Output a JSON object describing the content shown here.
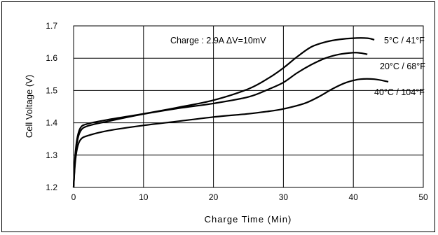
{
  "chart_data": {
    "type": "line",
    "xlabel": "Charge Time (Min)",
    "ylabel": "Cell Voltage (V)",
    "xlim": [
      0,
      50
    ],
    "ylim": [
      1.2,
      1.7
    ],
    "x_ticks": [
      "0",
      "10",
      "20",
      "30",
      "40",
      "50"
    ],
    "y_ticks": [
      "1.2",
      "1.3",
      "1.4",
      "1.5",
      "1.6",
      "1.7"
    ],
    "grid": true,
    "annotation": "Charge : 2.9A  ΔV=10mV",
    "series": [
      {
        "name": "5°C / 41°F",
        "points": [
          [
            0,
            1.2
          ],
          [
            0.2,
            1.29
          ],
          [
            0.5,
            1.35
          ],
          [
            1,
            1.385
          ],
          [
            2,
            1.397
          ],
          [
            5,
            1.41
          ],
          [
            10,
            1.428
          ],
          [
            15,
            1.448
          ],
          [
            20,
            1.47
          ],
          [
            25,
            1.505
          ],
          [
            28,
            1.54
          ],
          [
            30,
            1.57
          ],
          [
            32,
            1.605
          ],
          [
            34,
            1.635
          ],
          [
            36,
            1.65
          ],
          [
            38,
            1.658
          ],
          [
            40,
            1.662
          ],
          [
            42,
            1.662
          ],
          [
            43,
            1.657
          ]
        ]
      },
      {
        "name": "20°C / 68°F",
        "points": [
          [
            0,
            1.2
          ],
          [
            0.2,
            1.28
          ],
          [
            0.5,
            1.34
          ],
          [
            1,
            1.375
          ],
          [
            2,
            1.39
          ],
          [
            5,
            1.405
          ],
          [
            10,
            1.427
          ],
          [
            15,
            1.445
          ],
          [
            20,
            1.46
          ],
          [
            25,
            1.48
          ],
          [
            28,
            1.505
          ],
          [
            30,
            1.525
          ],
          [
            32,
            1.555
          ],
          [
            34,
            1.58
          ],
          [
            36,
            1.6
          ],
          [
            38,
            1.612
          ],
          [
            40,
            1.617
          ],
          [
            41,
            1.616
          ],
          [
            42,
            1.612
          ]
        ]
      },
      {
        "name": "40°C / 104°F",
        "points": [
          [
            0,
            1.2
          ],
          [
            0.2,
            1.27
          ],
          [
            0.5,
            1.32
          ],
          [
            1,
            1.348
          ],
          [
            2,
            1.36
          ],
          [
            5,
            1.376
          ],
          [
            10,
            1.392
          ],
          [
            15,
            1.405
          ],
          [
            20,
            1.418
          ],
          [
            25,
            1.428
          ],
          [
            28,
            1.436
          ],
          [
            30,
            1.443
          ],
          [
            33,
            1.46
          ],
          [
            35,
            1.48
          ],
          [
            37,
            1.505
          ],
          [
            39,
            1.525
          ],
          [
            41,
            1.535
          ],
          [
            43,
            1.535
          ],
          [
            45,
            1.527
          ]
        ]
      }
    ]
  }
}
